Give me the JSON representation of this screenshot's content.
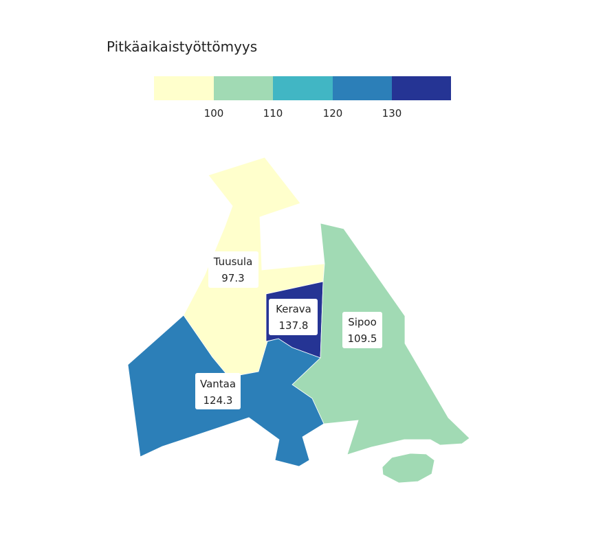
{
  "legend": {
    "title": "Pitkäaikaistyöttömyys",
    "bins": [
      {
        "color": "#ffffcc"
      },
      {
        "color": "#a1dab4"
      },
      {
        "color": "#41b6c4"
      },
      {
        "color": "#2c7fb8"
      },
      {
        "color": "#253494"
      }
    ],
    "ticks": [
      "100",
      "110",
      "120",
      "130"
    ]
  },
  "regions": [
    {
      "name": "Tuusula",
      "value": "97.3",
      "color": "#ffffcc"
    },
    {
      "name": "Kerava",
      "value": "137.8",
      "color": "#253494"
    },
    {
      "name": "Sipoo",
      "value": "109.5",
      "color": "#a1dab4"
    },
    {
      "name": "Vantaa",
      "value": "124.3",
      "color": "#2c7fb8"
    }
  ]
}
